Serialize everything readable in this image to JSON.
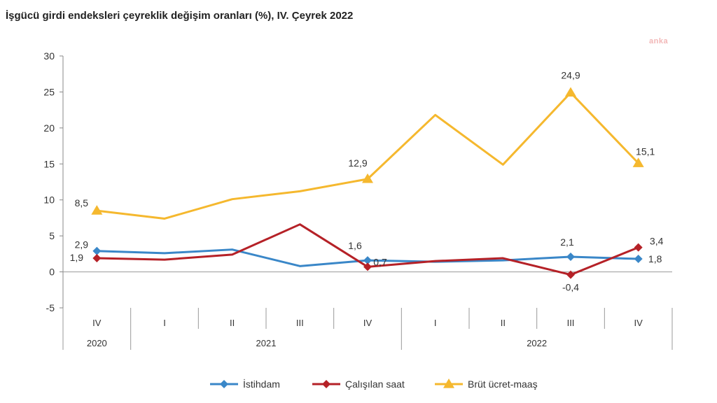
{
  "title": "İşgücü girdi endeksleri çeyreklik değişim oranları (%), IV. Çeyrek 2022",
  "watermark": "anka",
  "chart_data": {
    "type": "line",
    "title": "İşgücü girdi endeksleri çeyreklik değişim oranları (%), IV. Çeyrek 2022",
    "categories": [
      "IV",
      "I",
      "II",
      "III",
      "IV",
      "I",
      "II",
      "III",
      "IV"
    ],
    "years": [
      {
        "label": "2020",
        "span": [
          0,
          0
        ]
      },
      {
        "label": "2021",
        "span": [
          1,
          4
        ]
      },
      {
        "label": "2022",
        "span": [
          5,
          8
        ]
      }
    ],
    "ylim": [
      -5,
      30
    ],
    "yticks": [
      -5,
      0,
      5,
      10,
      15,
      20,
      25,
      30
    ],
    "grid": false,
    "legend_position": "bottom",
    "series": [
      {
        "name": "İstihdam",
        "color": "#3a87c8",
        "marker": "diamond",
        "values": [
          2.9,
          2.6,
          3.1,
          0.8,
          1.6,
          1.4,
          1.6,
          2.1,
          1.8
        ],
        "labels": {
          "0": "2,9",
          "4": "1,6",
          "7": "2,1",
          "8": "1,8"
        }
      },
      {
        "name": "Çalışılan saat",
        "color": "#b52127",
        "marker": "diamond",
        "values": [
          1.9,
          1.7,
          2.4,
          6.6,
          0.7,
          1.5,
          1.9,
          -0.4,
          3.4
        ],
        "labels": {
          "0": "1,9",
          "4": "0,7",
          "7": "-0,4",
          "8": "3,4"
        }
      },
      {
        "name": "Brüt ücret-maaş",
        "color": "#f5b82e",
        "marker": "triangle",
        "values": [
          8.5,
          7.4,
          10.1,
          11.2,
          12.9,
          21.8,
          14.9,
          24.9,
          15.1
        ],
        "labels": {
          "0": "8,5",
          "4": "12,9",
          "7": "24,9",
          "8": "15,1"
        }
      }
    ]
  }
}
